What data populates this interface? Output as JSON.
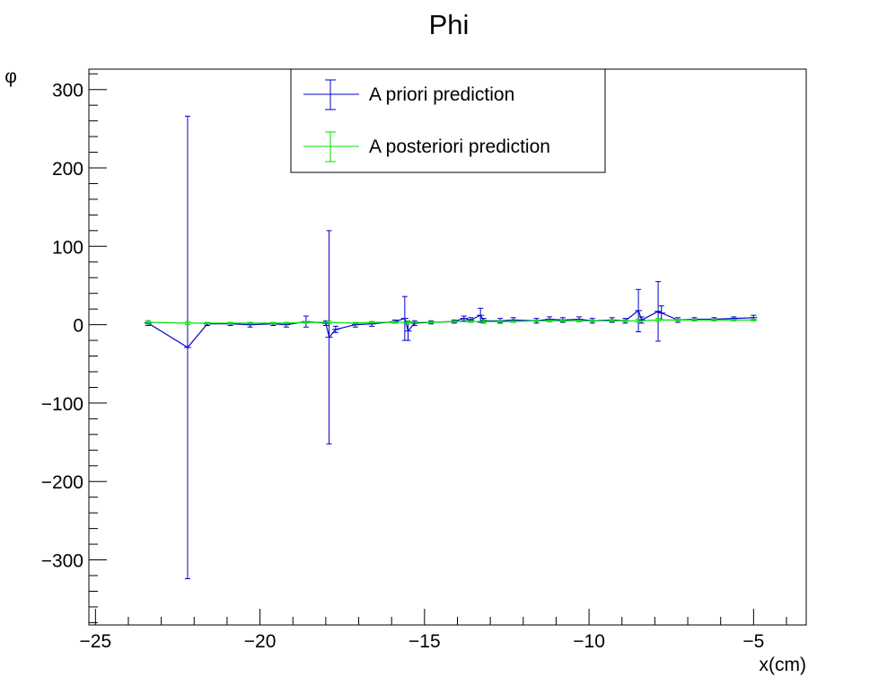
{
  "chart_data": {
    "type": "scatter",
    "title": "Phi",
    "xlabel": "x(cm)",
    "ylabel": "φ",
    "xlim": [
      -25.2,
      -3.4
    ],
    "ylim": [
      -383,
      326
    ],
    "x_ticks": [
      -25,
      -20,
      -15,
      -10,
      -5
    ],
    "x_tick_labels": [
      "−25",
      "−20",
      "−15",
      "−10",
      "−5"
    ],
    "y_ticks": [
      300,
      200,
      100,
      0,
      -100,
      -200,
      -300
    ],
    "y_tick_labels": [
      "300",
      "200",
      "100",
      "0",
      "−100",
      "−200",
      "−300"
    ],
    "grid": false,
    "legend_position": "top-center",
    "series": [
      {
        "name": "A priori prediction",
        "color": "#0000cc",
        "points": [
          {
            "x": -23.4,
            "y": 2,
            "err": 3
          },
          {
            "x": -22.2,
            "y": -29,
            "err": 295
          },
          {
            "x": -21.6,
            "y": 1,
            "err": 2
          },
          {
            "x": -20.9,
            "y": 1,
            "err": 2
          },
          {
            "x": -20.3,
            "y": 0,
            "err": 3
          },
          {
            "x": -19.6,
            "y": 1,
            "err": 2
          },
          {
            "x": -19.2,
            "y": 0,
            "err": 3
          },
          {
            "x": -18.6,
            "y": 4,
            "err": 7
          },
          {
            "x": -18.0,
            "y": 2,
            "err": 3
          },
          {
            "x": -17.9,
            "y": -16,
            "err": 136
          },
          {
            "x": -17.7,
            "y": -6,
            "err": 4
          },
          {
            "x": -17.1,
            "y": 0,
            "err": 3
          },
          {
            "x": -16.6,
            "y": 1,
            "err": 3
          },
          {
            "x": -15.9,
            "y": 4,
            "err": 2
          },
          {
            "x": -15.6,
            "y": 8,
            "err": 28
          },
          {
            "x": -15.5,
            "y": -8,
            "err": 12
          },
          {
            "x": -15.3,
            "y": 2,
            "err": 3
          },
          {
            "x": -14.8,
            "y": 3,
            "err": 2
          },
          {
            "x": -14.1,
            "y": 4,
            "err": 2
          },
          {
            "x": -13.8,
            "y": 8,
            "err": 3
          },
          {
            "x": -13.6,
            "y": 6,
            "err": 3
          },
          {
            "x": -13.3,
            "y": 12,
            "err": 9
          },
          {
            "x": -13.2,
            "y": 5,
            "err": 3
          },
          {
            "x": -12.7,
            "y": 5,
            "err": 3
          },
          {
            "x": -12.3,
            "y": 6,
            "err": 3
          },
          {
            "x": -11.6,
            "y": 5,
            "err": 3
          },
          {
            "x": -11.2,
            "y": 7,
            "err": 3
          },
          {
            "x": -10.8,
            "y": 6,
            "err": 3
          },
          {
            "x": -10.3,
            "y": 7,
            "err": 3
          },
          {
            "x": -9.9,
            "y": 5,
            "err": 3
          },
          {
            "x": -9.3,
            "y": 6,
            "err": 3
          },
          {
            "x": -8.9,
            "y": 5,
            "err": 3
          },
          {
            "x": -8.5,
            "y": 18,
            "err": 27
          },
          {
            "x": -8.4,
            "y": 6,
            "err": 4
          },
          {
            "x": -7.9,
            "y": 17,
            "err": 38
          },
          {
            "x": -7.8,
            "y": 15,
            "err": 9
          },
          {
            "x": -7.3,
            "y": 6,
            "err": 3
          },
          {
            "x": -6.8,
            "y": 7,
            "err": 2
          },
          {
            "x": -6.2,
            "y": 7,
            "err": 2
          },
          {
            "x": -5.6,
            "y": 8,
            "err": 2
          },
          {
            "x": -5.0,
            "y": 9,
            "err": 3
          }
        ]
      },
      {
        "name": "A posteriori prediction",
        "color": "#00e000",
        "points": [
          {
            "x": -23.4,
            "y": 3,
            "err": 2
          },
          {
            "x": -22.2,
            "y": 2,
            "err": 2
          },
          {
            "x": -21.6,
            "y": 2,
            "err": 1
          },
          {
            "x": -20.9,
            "y": 2,
            "err": 1
          },
          {
            "x": -20.3,
            "y": 2,
            "err": 1
          },
          {
            "x": -19.6,
            "y": 2,
            "err": 1
          },
          {
            "x": -19.2,
            "y": 2,
            "err": 1
          },
          {
            "x": -18.6,
            "y": 3,
            "err": 1
          },
          {
            "x": -17.9,
            "y": 3,
            "err": 2
          },
          {
            "x": -17.1,
            "y": 2,
            "err": 1
          },
          {
            "x": -16.6,
            "y": 3,
            "err": 1
          },
          {
            "x": -15.9,
            "y": 3,
            "err": 1
          },
          {
            "x": -15.5,
            "y": 3,
            "err": 2
          },
          {
            "x": -14.8,
            "y": 3,
            "err": 1
          },
          {
            "x": -14.1,
            "y": 4,
            "err": 1
          },
          {
            "x": -13.6,
            "y": 4,
            "err": 1
          },
          {
            "x": -13.2,
            "y": 4,
            "err": 2
          },
          {
            "x": -12.7,
            "y": 4,
            "err": 1
          },
          {
            "x": -12.3,
            "y": 4,
            "err": 1
          },
          {
            "x": -11.6,
            "y": 5,
            "err": 1
          },
          {
            "x": -11.2,
            "y": 5,
            "err": 1
          },
          {
            "x": -10.8,
            "y": 5,
            "err": 1
          },
          {
            "x": -10.3,
            "y": 5,
            "err": 1
          },
          {
            "x": -9.9,
            "y": 5,
            "err": 1
          },
          {
            "x": -9.3,
            "y": 5,
            "err": 1
          },
          {
            "x": -8.9,
            "y": 5,
            "err": 1
          },
          {
            "x": -8.5,
            "y": 5,
            "err": 2
          },
          {
            "x": -7.9,
            "y": 6,
            "err": 2
          },
          {
            "x": -7.3,
            "y": 6,
            "err": 1
          },
          {
            "x": -6.8,
            "y": 6,
            "err": 1
          },
          {
            "x": -6.2,
            "y": 6,
            "err": 1
          },
          {
            "x": -5.6,
            "y": 6,
            "err": 1
          },
          {
            "x": -5.0,
            "y": 6,
            "err": 1
          }
        ]
      }
    ]
  }
}
